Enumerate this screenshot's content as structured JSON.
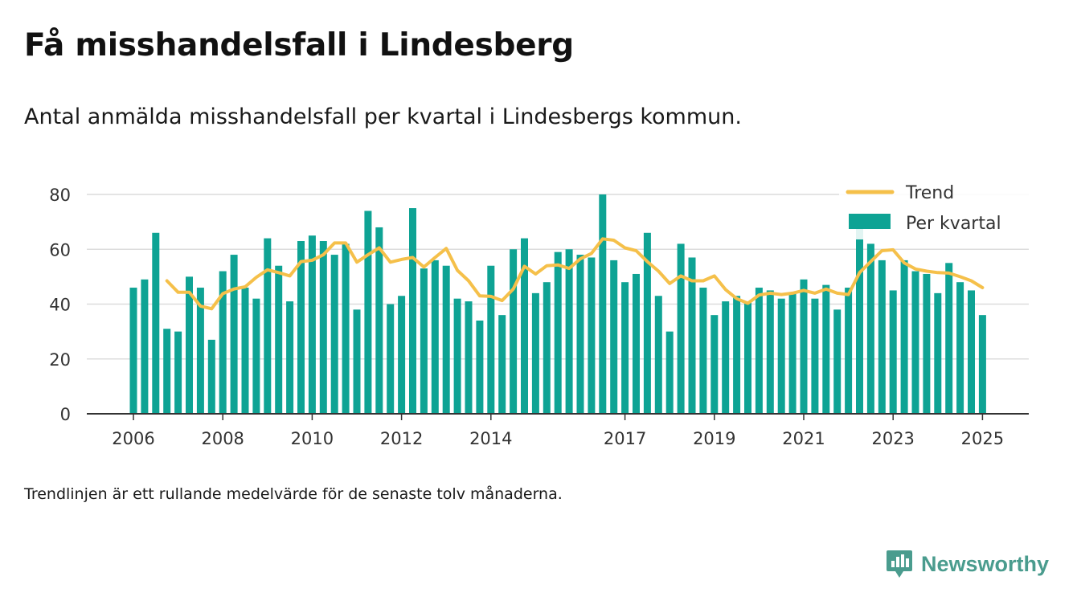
{
  "title": "Få misshandelsfall i Lindesberg",
  "subtitle": "Antal anmälda misshandelsfall per kvartal i Lindesbergs kommun.",
  "footnote": "Trendlinjen är ett rullande medelvärde för de senaste tolv månaderna.",
  "brand": {
    "name": "Newsworthy",
    "icon": "newsworthy-logo-icon",
    "color": "#4a9c8e"
  },
  "chart_data": {
    "type": "bar",
    "x_ticks": [
      {
        "label": "2006",
        "q": 0
      },
      {
        "label": "2008",
        "q": 8
      },
      {
        "label": "2010",
        "q": 16
      },
      {
        "label": "2012",
        "q": 24
      },
      {
        "label": "2014",
        "q": 32
      },
      {
        "label": "2017",
        "q": 44
      },
      {
        "label": "2019",
        "q": 52
      },
      {
        "label": "2021",
        "q": 60
      },
      {
        "label": "2023",
        "q": 68
      },
      {
        "label": "2025",
        "q": 76
      }
    ],
    "y_ticks": [
      0,
      20,
      40,
      60,
      80
    ],
    "ylim": [
      0,
      80
    ],
    "grid": true,
    "legend_position": "top-right",
    "series": [
      {
        "name": "Trend",
        "type": "line",
        "color": "#f5c04a",
        "start_q": 3,
        "values": [
          48.5,
          44.3,
          44.3,
          39.3,
          38.3,
          43.8,
          45.5,
          46.3,
          49.8,
          52.5,
          51.5,
          50.3,
          55.5,
          56.0,
          58.0,
          62.3,
          62.3,
          55.3,
          58.0,
          60.5,
          55.3,
          56.3,
          57.0,
          53.5,
          57.0,
          60.3,
          52.3,
          48.5,
          43.0,
          42.8,
          41.3,
          45.5,
          53.8,
          51.0,
          54.0,
          54.3,
          53.0,
          56.5,
          58.5,
          63.8,
          63.3,
          60.5,
          59.5,
          55.5,
          52.0,
          47.5,
          50.3,
          48.5,
          48.5,
          50.3,
          45.3,
          42.0,
          40.3,
          43.3,
          44.0,
          43.5,
          44.0,
          45.0,
          44.0,
          45.5,
          44.0,
          43.5,
          51.5,
          55.5,
          59.5,
          59.8,
          55.0,
          52.8,
          52.0,
          51.5,
          51.3,
          50.0,
          48.5,
          46.0
        ]
      },
      {
        "name": "Per kvartal",
        "type": "bar",
        "color": "#0ea394",
        "start_q": 0,
        "values": [
          46,
          49,
          66,
          31,
          30,
          50,
          46,
          27,
          52,
          58,
          46,
          42,
          64,
          54,
          41,
          63,
          65,
          63,
          58,
          62,
          38,
          74,
          68,
          40,
          43,
          75,
          53,
          56,
          54,
          42,
          41,
          34,
          54,
          36,
          60,
          64,
          44,
          48,
          59,
          60,
          58,
          57,
          80,
          56,
          48,
          51,
          66,
          43,
          30,
          62,
          57,
          46,
          36,
          41,
          43,
          41,
          46,
          45,
          42,
          44,
          49,
          42,
          47,
          38,
          46,
          70,
          62,
          56,
          45,
          56,
          52,
          51,
          44,
          55,
          48,
          45,
          36
        ]
      }
    ]
  }
}
